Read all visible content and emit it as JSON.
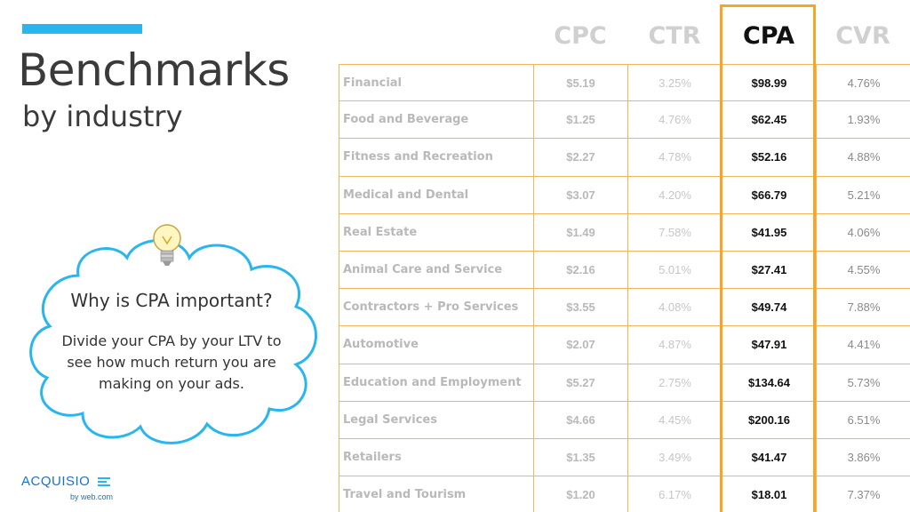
{
  "slide": {
    "title": "Benchmarks",
    "subtitle": "by industry",
    "accent_color": "#29b6f0",
    "highlight_color": "#f5a623"
  },
  "callout": {
    "title": "Why is CPA important?",
    "body": "Divide your CPA by your LTV to see how much return you are making on your ads.",
    "icon": "lightbulb-icon"
  },
  "logo": {
    "brand": "ACQUISIO",
    "byline": "by web.com"
  },
  "table": {
    "columns": [
      "CPC",
      "CTR",
      "CPA",
      "CVR"
    ],
    "highlighted_column": "CPA",
    "rows": [
      {
        "industry": "Financial",
        "cpc": "$5.19",
        "ctr": "3.25%",
        "cpa": "$98.99",
        "cvr": "4.76%"
      },
      {
        "industry": "Food and Beverage",
        "cpc": "$1.25",
        "ctr": "4.76%",
        "cpa": "$62.45",
        "cvr": "1.93%"
      },
      {
        "industry": "Fitness and Recreation",
        "cpc": "$2.27",
        "ctr": "4.78%",
        "cpa": "$52.16",
        "cvr": "4.88%"
      },
      {
        "industry": "Medical and Dental",
        "cpc": "$3.07",
        "ctr": "4.20%",
        "cpa": "$66.79",
        "cvr": "5.21%"
      },
      {
        "industry": "Real Estate",
        "cpc": "$1.49",
        "ctr": "7.58%",
        "cpa": "$41.95",
        "cvr": "4.06%"
      },
      {
        "industry": "Animal Care and Service",
        "cpc": "$2.16",
        "ctr": "5.01%",
        "cpa": "$27.41",
        "cvr": "4.55%"
      },
      {
        "industry": "Contractors + Pro Services",
        "cpc": "$3.55",
        "ctr": "4.08%",
        "cpa": "$49.74",
        "cvr": "7.88%"
      },
      {
        "industry": "Automotive",
        "cpc": "$2.07",
        "ctr": "4.87%",
        "cpa": "$47.91",
        "cvr": "4.41%"
      },
      {
        "industry": "Education and Employment",
        "cpc": "$5.27",
        "ctr": "2.75%",
        "cpa": "$134.64",
        "cvr": "5.73%"
      },
      {
        "industry": "Legal Services",
        "cpc": "$4.66",
        "ctr": "4.45%",
        "cpa": "$200.16",
        "cvr": "6.51%"
      },
      {
        "industry": "Retailers",
        "cpc": "$1.35",
        "ctr": "3.49%",
        "cpa": "$41.47",
        "cvr": "3.86%"
      },
      {
        "industry": "Travel and Tourism",
        "cpc": "$1.20",
        "ctr": "6.17%",
        "cpa": "$18.01",
        "cvr": "7.37%"
      }
    ]
  }
}
